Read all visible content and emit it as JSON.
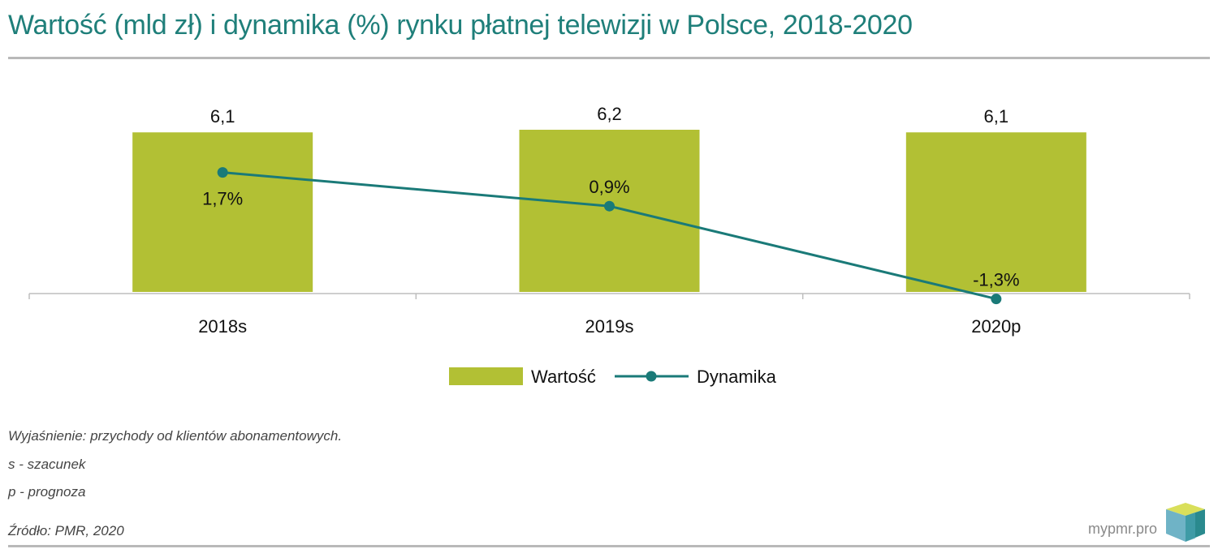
{
  "header": {
    "title": "Wartość (mld zł) i dynamika (%) rynku płatnej telewizji w Polsce, 2018-2020"
  },
  "chart_data": {
    "type": "bar",
    "categories": [
      "2018s",
      "2019s",
      "2020p"
    ],
    "series": [
      {
        "name": "Wartość",
        "kind": "bar",
        "values": [
          6.1,
          6.2,
          6.1
        ],
        "labels": [
          "6,1",
          "6,2",
          "6,1"
        ],
        "color": "#b2c034"
      },
      {
        "name": "Dynamika",
        "kind": "line",
        "values": [
          1.7,
          0.9,
          -1.3
        ],
        "labels": [
          "1,7%",
          "0,9%",
          "-1,3%"
        ],
        "color": "#1a7a78"
      }
    ],
    "title": "Wartość (mld zł) i dynamika (%) rynku płatnej telewizji w Polsce, 2018-2020",
    "legend_position": "bottom-center",
    "grid": false
  },
  "notes": {
    "explanation": "Wyjaśnienie: przychody od klientów abonamentowych.",
    "s_def": "s - szacunek",
    "p_def": "p - prognoza",
    "source": "Źródło: PMR, 2020"
  },
  "brand": {
    "text": "mypmr.pro"
  },
  "colors": {
    "title": "#1f7f7a",
    "bar": "#b2c034",
    "line": "#1a7a78",
    "rule": "#b9b9b9"
  }
}
